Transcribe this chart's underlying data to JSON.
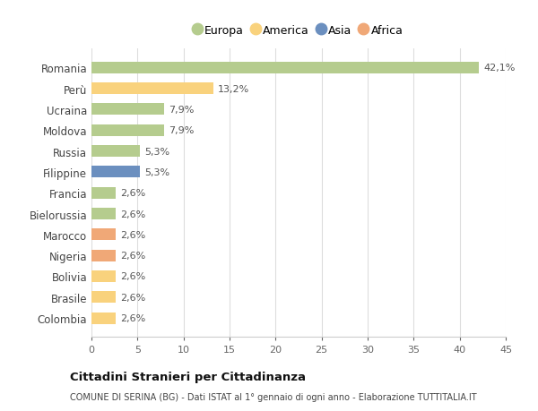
{
  "countries": [
    "Romania",
    "Perù",
    "Ucraina",
    "Moldova",
    "Russia",
    "Filippine",
    "Francia",
    "Bielorussia",
    "Marocco",
    "Nigeria",
    "Bolivia",
    "Brasile",
    "Colombia"
  ],
  "values": [
    42.1,
    13.2,
    7.9,
    7.9,
    5.3,
    5.3,
    2.6,
    2.6,
    2.6,
    2.6,
    2.6,
    2.6,
    2.6
  ],
  "labels": [
    "42,1%",
    "13,2%",
    "7,9%",
    "7,9%",
    "5,3%",
    "5,3%",
    "2,6%",
    "2,6%",
    "2,6%",
    "2,6%",
    "2,6%",
    "2,6%",
    "2,6%"
  ],
  "colors": [
    "#b5cc8e",
    "#f9d27d",
    "#b5cc8e",
    "#b5cc8e",
    "#b5cc8e",
    "#6b8fbf",
    "#b5cc8e",
    "#b5cc8e",
    "#f0a877",
    "#f0a877",
    "#f9d27d",
    "#f9d27d",
    "#f9d27d"
  ],
  "legend": {
    "Europa": "#b5cc8e",
    "America": "#f9d27d",
    "Asia": "#6b8fbf",
    "Africa": "#f0a877"
  },
  "xlim": [
    0,
    45
  ],
  "xticks": [
    0,
    5,
    10,
    15,
    20,
    25,
    30,
    35,
    40,
    45
  ],
  "title": "Cittadini Stranieri per Cittadinanza",
  "subtitle": "COMUNE DI SERINA (BG) - Dati ISTAT al 1° gennaio di ogni anno - Elaborazione TUTTITALIA.IT",
  "background_color": "#ffffff",
  "plot_background": "#ffffff",
  "grid_color": "#dddddd",
  "bar_height": 0.55
}
